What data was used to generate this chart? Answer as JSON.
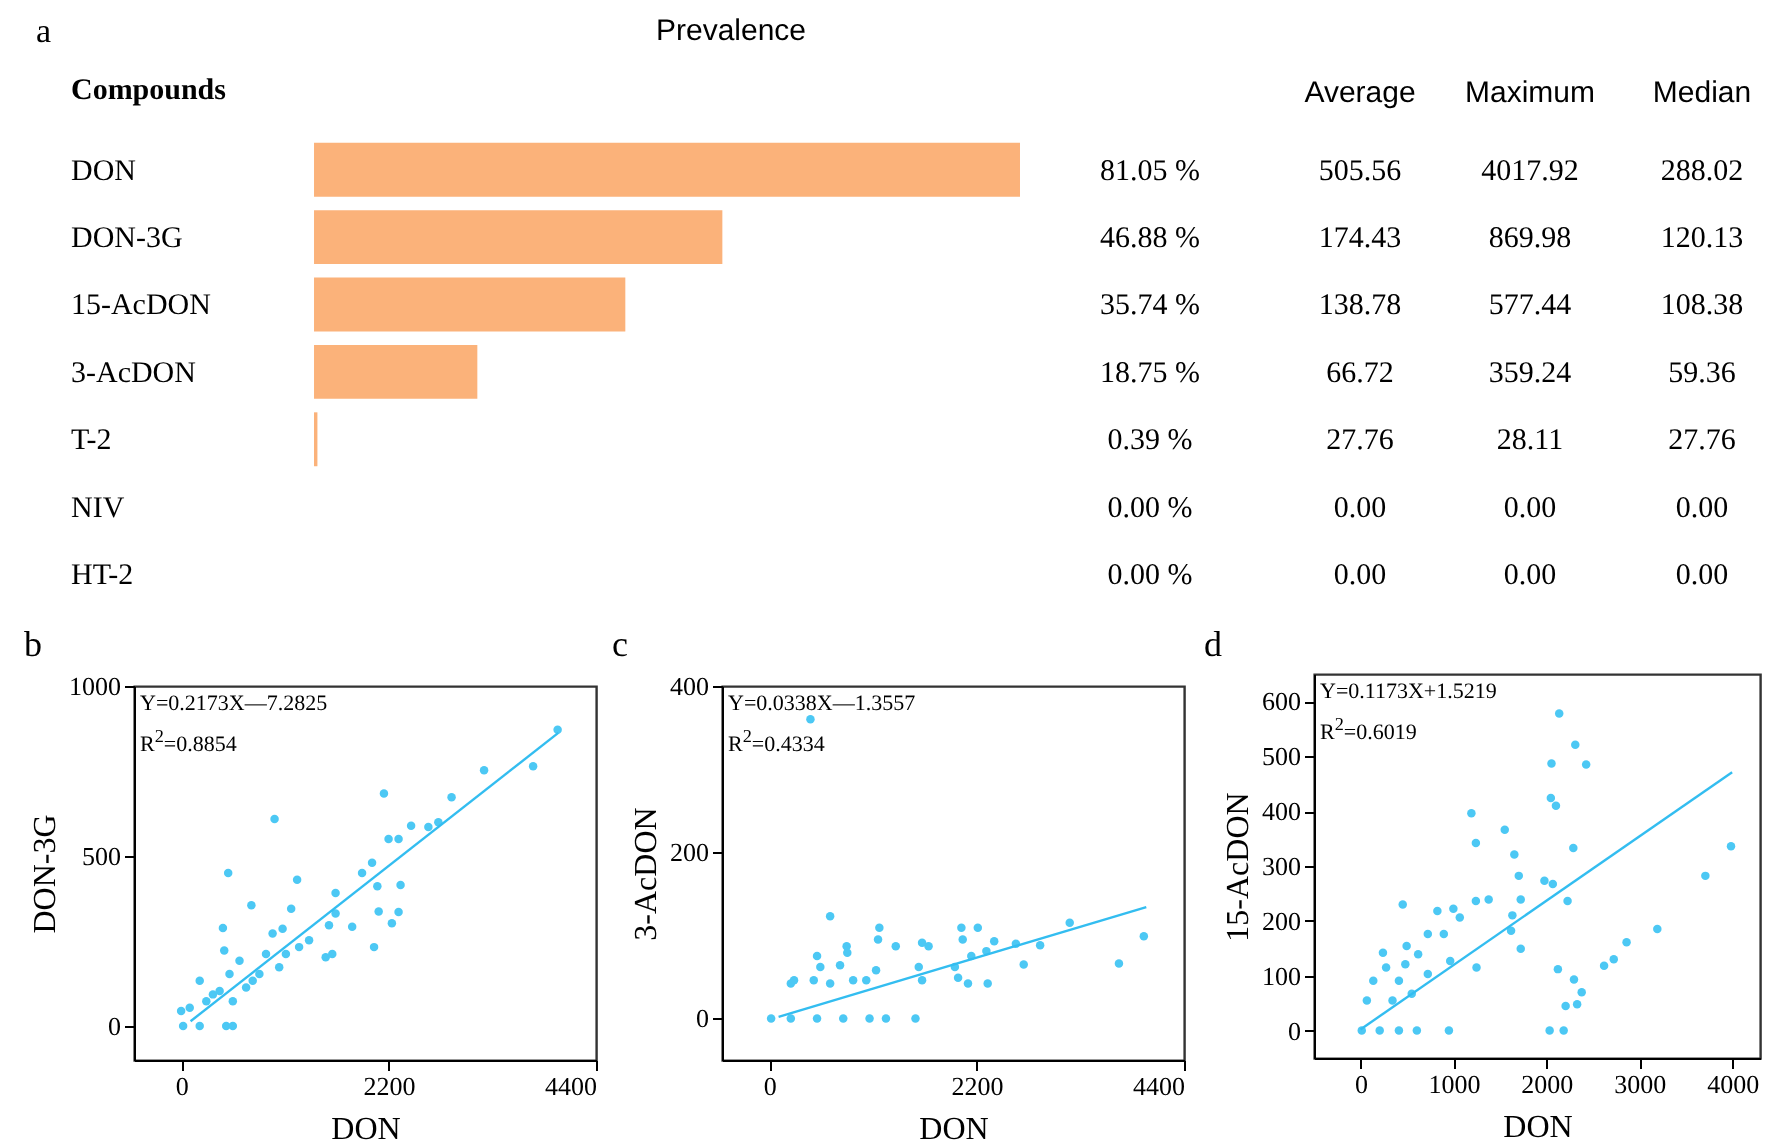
{
  "chart_data": [
    {
      "type": "bar",
      "orientation": "horizontal",
      "title": "Prevalence",
      "ylabel": "Compounds",
      "categories": [
        "DON",
        "DON-3G",
        "15-AcDON",
        "3-AcDON",
        "T-2",
        "NIV",
        "HT-2"
      ],
      "values": [
        81.05,
        46.88,
        35.74,
        18.75,
        0.39,
        0,
        0
      ],
      "value_labels": [
        "81.05 %",
        "46.88 %",
        "35.74 %",
        "18.75 %",
        "0.39 %",
        "0.00 %",
        "0.00 %"
      ],
      "color": "#fbb27a",
      "tick_labels": "y",
      "annotations": [
        "a"
      ]
    },
    {
      "type": "other",
      "title": "Average",
      "annotations": [
        "505.56",
        "174.43",
        "138.78",
        "66.72",
        "27.76",
        "0.00",
        "0.00"
      ]
    },
    {
      "type": "other",
      "title": "Maximum",
      "annotations": [
        "4017.92",
        "869.98",
        "577.44",
        "359.24",
        "28.11",
        "0.00",
        "0.00"
      ]
    },
    {
      "type": "other",
      "title": "Median",
      "annotations": [
        "288.02",
        "120.13",
        "108.38",
        "59.36",
        "27.76",
        "0.00",
        "0.00"
      ]
    },
    {
      "type": "scatter",
      "xlabel": "DON",
      "ylabel": "DON-3G",
      "xlim": [
        -500,
        4400
      ],
      "xticks": [
        0,
        2200,
        4400
      ],
      "ylim": [
        -100,
        1000
      ],
      "yticks": [
        0,
        500,
        1000
      ],
      "grid": false,
      "annotations": [
        "b",
        "Y=0.2173X—7.2825",
        "R$^{2}$=0.8854"
      ],
      "series": [
        {
          "type": "scatter",
          "marker": "circle",
          "color": "#4cc8f4",
          "x": [
            3993,
            3733,
            3213,
            2868,
            2728,
            2622,
            2439,
            2306,
            2200,
            2151,
            2025,
            1919,
            2081,
            2095,
            2046,
            2235,
            2306,
            2327,
            991,
            499,
            745,
            1230,
            1167,
            1638,
            1638,
            1568,
            1533,
            1603,
            1357,
            1076,
            970,
            900,
            443,
            457,
            197,
            337,
            91,
            21,
            197,
            478,
            548,
            548,
            759,
            1040,
            619,
            830,
            1251,
            1814,
            0,
            267,
            408,
            513,
            689,
            1111
          ],
          "values": [
            871,
            764,
            752,
            673,
            599,
            585,
            589,
            550,
            550,
            684,
            480,
            450,
            411,
            337,
            232,
            302,
            335,
            415,
            609,
            450,
            355,
            430,
            345,
            391,
            331,
            296,
            202,
            212,
            252,
            286,
            272,
            212,
            288,
            222,
            133,
            93,
            54,
            0,
            0,
            0,
            0,
            73,
            133,
            173,
            192,
            153,
            232,
            292,
            44,
            73,
            103,
            153,
            113,
            212
          ]
        },
        {
          "type": "line",
          "marker": "none",
          "color": "#33bdf0",
          "x": [
            100,
            4000
          ],
          "values": [
            14,
            862
          ]
        }
      ]
    },
    {
      "type": "scatter",
      "xlabel": "DON",
      "ylabel": "3-AcDON",
      "xlim": [
        -500,
        4400
      ],
      "xticks": [
        0,
        2200,
        4400
      ],
      "ylim": [
        -50,
        400
      ],
      "yticks": [
        0,
        200,
        400
      ],
      "grid": false,
      "annotations": [
        "c",
        "Y=0.0338X—1.3557",
        "R$^{2}$=0.4334"
      ],
      "series": [
        {
          "type": "scatter",
          "marker": "circle",
          "color": "#4cc8f4",
          "x": [
            438,
            3974,
            3710,
            3188,
            2874,
            2700,
            2617,
            2387,
            2304,
            2213,
            2039,
            2053,
            2144,
            2318,
            2109,
            2004,
            1970,
            1691,
            1622,
            1587,
            1622,
            1169,
            1155,
            1343,
            1134,
            1030,
            822,
            829,
            647,
            752,
            508,
            543,
            473,
            264,
            230,
            891,
            647,
            1552,
            1239,
            21,
            230,
            508,
            786,
            1065
          ],
          "values": [
            360,
            99,
            66,
            115,
            88,
            65,
            90,
            93,
            81,
            109,
            109,
            95,
            75,
            42,
            42,
            49,
            62,
            87,
            91,
            62,
            46,
            109,
            95,
            87,
            58,
            46,
            87,
            79,
            123,
            64,
            75,
            62,
            46,
            46,
            42,
            46,
            42,
            0,
            0,
            0,
            0,
            0,
            0,
            0
          ]
        },
        {
          "type": "line",
          "marker": "none",
          "color": "#33bdf0",
          "x": [
            100,
            4000
          ],
          "values": [
            2,
            134
          ]
        }
      ]
    },
    {
      "type": "scatter",
      "xlabel": "DON",
      "ylabel": "15-AcDON",
      "xlim": [
        -500,
        4300
      ],
      "xticks": [
        0,
        1000,
        2000,
        3000,
        4000
      ],
      "ylim": [
        -50,
        650
      ],
      "yticks": [
        0,
        100,
        200,
        300,
        400,
        500,
        600
      ],
      "grid": false,
      "annotations": [
        "d",
        "Y=0.1173X+1.5219",
        "R$^{2}$=0.6019"
      ],
      "series": [
        {
          "type": "scatter",
          "marker": "circle",
          "color": "#4cc8f4",
          "x": [
            2139,
            2312,
            2429,
            2056,
            2049,
            2104,
            2291,
            1194,
            1242,
            1553,
            1656,
            1704,
            1980,
            2070,
            2229,
            3988,
            3712,
            3195,
            2864,
            2726,
            2622,
            2125,
            2298,
            2381,
            2332,
            2208,
            2036,
            2187,
            952,
            455,
            828,
            1000,
            1069,
            897,
            1242,
            1380,
            1725,
            1635,
            1621,
            1725,
            1249,
            966,
            725,
            621,
            497,
            242,
            138,
            69,
            414,
            345,
            552,
            725,
            276,
            483,
            14,
            207,
            414,
            607
          ],
          "values": [
            578,
            521,
            485,
            487,
            424,
            410,
            333,
            396,
            342,
            366,
            321,
            282,
            273,
            267,
            236,
            336,
            282,
            185,
            161,
            130,
            118,
            112,
            93,
            70,
            48,
            45,
            0,
            0,
            0,
            230,
            218,
            222,
            206,
            176,
            236,
            239,
            239,
            210,
            182,
            149,
            115,
            127,
            176,
            139,
            154,
            142,
            91,
            55,
            91,
            55,
            67,
            103,
            115,
            121,
            0,
            0,
            0,
            0
          ]
        },
        {
          "type": "line",
          "marker": "none",
          "color": "#33bdf0",
          "x": [
            0,
            4000
          ],
          "values": [
            2,
            471
          ]
        }
      ]
    }
  ]
}
